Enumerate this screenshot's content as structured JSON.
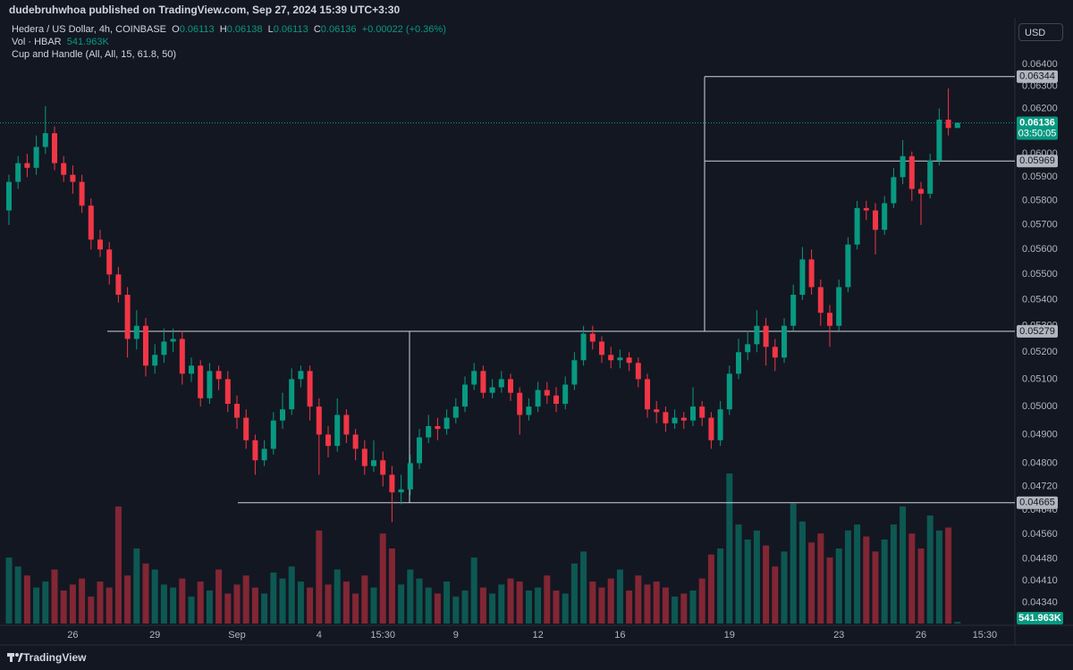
{
  "header": "dudebruhwhoa published on TradingView.com, Sep 27, 2024 15:39 UTC+3:30",
  "footer": "TradingView",
  "currency": "USD",
  "chart_data": {
    "type": "candlestick",
    "title": "Hedera / US Dollar, 4h, COINBASE",
    "legend": {
      "o_label": "O",
      "open": 0.06113,
      "h_label": "H",
      "high": 0.06138,
      "l_label": "L",
      "low": 0.06113,
      "c_label": "C",
      "close": 0.06136,
      "change": "+0.00022 (+0.36%)"
    },
    "volume_title": "Vol · HBAR",
    "volume_value_label": "541.963K",
    "indicator": "Cup and Handle (All, All, 15, 61.8, 50)",
    "last_price": 0.06136,
    "countdown": "03:50:05",
    "up_color": "#089981",
    "down_color": "#f23645",
    "log_scale": true,
    "ylim": [
      0.0427,
      0.0661
    ],
    "yticks": [
      {
        "value": 0.064,
        "label": "0.06400"
      },
      {
        "value": 0.063,
        "label": "0.06300"
      },
      {
        "value": 0.062,
        "label": "0.06200"
      },
      {
        "value": 0.06,
        "label": "0.06000"
      },
      {
        "value": 0.059,
        "label": "0.05900"
      },
      {
        "value": 0.058,
        "label": "0.05800"
      },
      {
        "value": 0.057,
        "label": "0.05700"
      },
      {
        "value": 0.056,
        "label": "0.05600"
      },
      {
        "value": 0.055,
        "label": "0.05500"
      },
      {
        "value": 0.054,
        "label": "0.05400"
      },
      {
        "value": 0.053,
        "label": "0.05300"
      },
      {
        "value": 0.052,
        "label": "0.05200"
      },
      {
        "value": 0.051,
        "label": "0.05100"
      },
      {
        "value": 0.05,
        "label": "0.05000"
      },
      {
        "value": 0.049,
        "label": "0.04900"
      },
      {
        "value": 0.048,
        "label": "0.04800"
      },
      {
        "value": 0.0472,
        "label": "0.04720"
      },
      {
        "value": 0.0464,
        "label": "0.04640"
      },
      {
        "value": 0.0456,
        "label": "0.04560"
      },
      {
        "value": 0.0448,
        "label": "0.04480"
      },
      {
        "value": 0.0441,
        "label": "0.04410"
      },
      {
        "value": 0.0434,
        "label": "0.04340"
      }
    ],
    "drawing_levels": [
      0.06344,
      0.05969,
      0.05279,
      0.04665
    ],
    "categories": [
      null,
      null,
      null,
      null,
      null,
      null,
      null,
      "26",
      null,
      null,
      null,
      null,
      null,
      null,
      null,
      null,
      "29",
      null,
      null,
      null,
      null,
      null,
      null,
      null,
      null,
      "Sep",
      null,
      null,
      null,
      null,
      null,
      null,
      null,
      null,
      "4",
      null,
      null,
      null,
      null,
      null,
      null,
      "15:30",
      null,
      null,
      null,
      null,
      null,
      null,
      null,
      "9",
      null,
      null,
      null,
      null,
      null,
      null,
      null,
      null,
      "12",
      null,
      null,
      null,
      null,
      null,
      null,
      null,
      null,
      "16",
      null,
      null,
      null,
      null,
      null,
      null,
      null,
      null,
      null,
      null,
      null,
      "19",
      null,
      null,
      null,
      null,
      null,
      null,
      null,
      null,
      null,
      null,
      null,
      "23",
      null,
      null,
      null,
      null,
      null,
      null,
      null,
      null,
      "26",
      null,
      null,
      null,
      null,
      null,
      null,
      "15:30"
    ],
    "open": [
      0.0576,
      0.0588,
      0.0596,
      0.0594,
      0.0603,
      0.0609,
      0.0596,
      0.0591,
      0.0588,
      0.0578,
      0.0564,
      0.056,
      0.055,
      0.0542,
      0.0525,
      0.053,
      0.0515,
      0.0519,
      0.0524,
      0.0525,
      0.0512,
      0.0515,
      0.0503,
      0.0513,
      0.051,
      0.0501,
      0.0496,
      0.0488,
      0.0481,
      0.0485,
      0.0495,
      0.0499,
      0.051,
      0.0513,
      0.05,
      0.049,
      0.0486,
      0.0497,
      0.049,
      0.0485,
      0.0479,
      0.0481,
      0.0476,
      0.047,
      0.0471,
      0.048,
      0.0489,
      0.0493,
      0.0492,
      0.0496,
      0.05,
      0.0508,
      0.0513,
      0.0505,
      0.0507,
      0.051,
      0.0505,
      0.0497,
      0.05,
      0.0506,
      0.0504,
      0.0501,
      0.0508,
      0.0517,
      0.0527,
      0.0524,
      0.0519,
      0.0517,
      0.0518,
      0.0516,
      0.051,
      0.0499,
      0.0498,
      0.0494,
      0.0496,
      0.0495,
      0.05,
      0.0496,
      0.0488,
      0.0499,
      0.0512,
      0.052,
      0.0523,
      0.053,
      0.0522,
      0.0518,
      0.053,
      0.0542,
      0.0556,
      0.0545,
      0.0535,
      0.053,
      0.0545,
      0.0562,
      0.0577,
      0.0576,
      0.0568,
      0.0579,
      0.059,
      0.0599,
      0.0585,
      0.0583,
      0.0597,
      0.0615,
      0.06113,
      null,
      null,
      null
    ],
    "high": [
      0.0591,
      0.0599,
      0.06,
      0.0608,
      0.0621,
      0.0612,
      0.0599,
      0.0595,
      0.0591,
      0.0581,
      0.0568,
      0.0563,
      0.0553,
      0.0545,
      0.0536,
      0.0533,
      0.0523,
      0.0529,
      0.0529,
      0.0528,
      0.0518,
      0.0517,
      0.0516,
      0.0515,
      0.0513,
      0.0504,
      0.0499,
      0.049,
      0.0488,
      0.0498,
      0.0505,
      0.0514,
      0.0515,
      0.0515,
      0.0503,
      0.0493,
      0.0503,
      0.0499,
      0.0492,
      0.0488,
      0.0488,
      0.0484,
      0.0479,
      0.0476,
      0.0483,
      0.0492,
      0.0497,
      0.0496,
      0.0499,
      0.0503,
      0.0511,
      0.0516,
      0.0515,
      0.051,
      0.0513,
      0.0512,
      0.0507,
      0.0503,
      0.0509,
      0.0509,
      0.0507,
      0.0511,
      0.052,
      0.053,
      0.053,
      0.0526,
      0.0522,
      0.0521,
      0.052,
      0.0518,
      0.0512,
      0.0502,
      0.05,
      0.0499,
      0.0498,
      0.0507,
      0.0502,
      0.0498,
      0.0502,
      0.0515,
      0.0525,
      0.0528,
      0.0536,
      0.0533,
      0.0525,
      0.0533,
      0.0546,
      0.0561,
      0.056,
      0.0548,
      0.0538,
      0.0548,
      0.0565,
      0.058,
      0.058,
      0.0579,
      0.0582,
      0.0594,
      0.0606,
      0.0601,
      0.0588,
      0.06,
      0.062,
      0.0629,
      0.06138,
      null,
      null,
      null
    ],
    "low": [
      0.057,
      0.0585,
      0.059,
      0.0591,
      0.06,
      0.0593,
      0.0588,
      0.0583,
      0.0575,
      0.056,
      0.0557,
      0.0546,
      0.0539,
      0.0518,
      0.0521,
      0.0511,
      0.0512,
      0.0516,
      0.052,
      0.0508,
      0.0509,
      0.05,
      0.0501,
      0.0506,
      0.0498,
      0.0492,
      0.0485,
      0.0476,
      0.0479,
      0.0483,
      0.0492,
      0.0497,
      0.0507,
      0.0495,
      0.0476,
      0.0482,
      0.0484,
      0.0487,
      0.0481,
      0.0476,
      0.0477,
      0.0472,
      0.046,
      0.0466,
      0.0469,
      0.0478,
      0.0487,
      0.0488,
      0.049,
      0.0494,
      0.0498,
      0.0506,
      0.0503,
      0.0503,
      0.0505,
      0.0502,
      0.049,
      0.0495,
      0.0498,
      0.0501,
      0.0498,
      0.0499,
      0.0506,
      0.0515,
      0.0521,
      0.0516,
      0.0514,
      0.0514,
      0.0513,
      0.0507,
      0.0496,
      0.0494,
      0.0491,
      0.0492,
      0.0492,
      0.0493,
      0.0493,
      0.0485,
      0.0486,
      0.0497,
      0.051,
      0.0517,
      0.052,
      0.0515,
      0.0513,
      0.0516,
      0.0528,
      0.054,
      0.0542,
      0.053,
      0.0522,
      0.0528,
      0.0543,
      0.056,
      0.0572,
      0.0558,
      0.0566,
      0.0577,
      0.0587,
      0.058,
      0.057,
      0.0581,
      0.0595,
      0.0608,
      0.06113,
      null,
      null,
      null
    ],
    "close": [
      0.0588,
      0.0596,
      0.0594,
      0.0603,
      0.0609,
      0.0596,
      0.0591,
      0.0588,
      0.0578,
      0.0564,
      0.056,
      0.055,
      0.0542,
      0.0525,
      0.053,
      0.0515,
      0.0519,
      0.0524,
      0.0525,
      0.0512,
      0.0515,
      0.0503,
      0.0513,
      0.051,
      0.0501,
      0.0496,
      0.0488,
      0.0481,
      0.0485,
      0.0495,
      0.0499,
      0.051,
      0.0513,
      0.05,
      0.049,
      0.0486,
      0.0497,
      0.049,
      0.0485,
      0.0479,
      0.0481,
      0.0476,
      0.047,
      0.0471,
      0.048,
      0.0489,
      0.0493,
      0.0492,
      0.0496,
      0.05,
      0.0508,
      0.0513,
      0.0505,
      0.0507,
      0.051,
      0.0505,
      0.0497,
      0.05,
      0.0506,
      0.0504,
      0.0501,
      0.0508,
      0.0517,
      0.0527,
      0.0524,
      0.0519,
      0.0517,
      0.0518,
      0.0516,
      0.051,
      0.0499,
      0.0498,
      0.0494,
      0.0496,
      0.0495,
      0.05,
      0.0496,
      0.0488,
      0.0499,
      0.0512,
      0.052,
      0.0523,
      0.053,
      0.0522,
      0.0518,
      0.053,
      0.0542,
      0.0556,
      0.0545,
      0.0535,
      0.053,
      0.0545,
      0.0562,
      0.0577,
      0.0576,
      0.0568,
      0.0579,
      0.059,
      0.0599,
      0.0585,
      0.0583,
      0.0597,
      0.0615,
      0.06113,
      0.06136,
      null,
      null,
      null
    ],
    "volume": [
      22000000,
      19000000,
      16000000,
      12000000,
      14000000,
      18000000,
      11000000,
      13000000,
      15000000,
      9000000,
      14000000,
      12000000,
      39000000,
      16000000,
      25000000,
      20000000,
      18000000,
      13000000,
      12000000,
      15000000,
      9000000,
      14000000,
      11000000,
      18000000,
      10000000,
      13000000,
      16000000,
      12000000,
      10000000,
      17000000,
      15000000,
      19000000,
      14000000,
      12000000,
      31000000,
      13000000,
      18000000,
      14000000,
      10000000,
      16000000,
      12000000,
      30000000,
      25000000,
      13000000,
      18000000,
      15000000,
      12000000,
      10000000,
      14000000,
      9000000,
      11000000,
      22000000,
      12000000,
      10000000,
      13000000,
      15000000,
      14000000,
      11000000,
      12000000,
      16000000,
      11000000,
      10000000,
      20000000,
      24000000,
      14000000,
      12000000,
      15000000,
      18000000,
      11000000,
      16000000,
      13000000,
      14000000,
      12000000,
      9000000,
      10000000,
      11000000,
      15000000,
      23000000,
      25000000,
      50000000,
      33000000,
      28000000,
      31000000,
      26000000,
      19000000,
      24000000,
      40000000,
      34000000,
      27000000,
      30000000,
      22000000,
      25000000,
      31000000,
      33000000,
      29000000,
      24000000,
      28000000,
      33000000,
      39000000,
      30000000,
      25000000,
      36000000,
      31000000,
      32000000,
      541963,
      null,
      null,
      null
    ]
  }
}
